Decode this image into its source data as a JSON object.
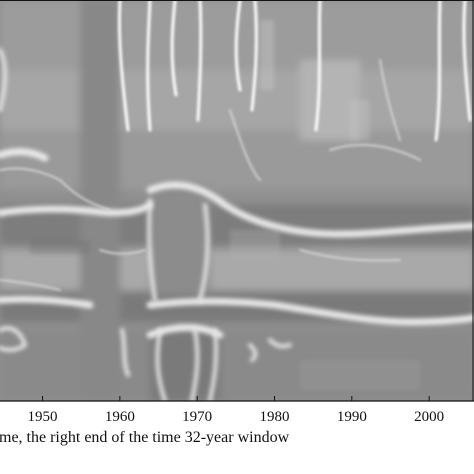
{
  "chart_data": {
    "type": "heatmap",
    "title": "",
    "xlabel": "me, the right end of the time 32-year window",
    "ylabel": "",
    "x_tick_labels": [
      "1950",
      "1960",
      "1970",
      "1980",
      "1990",
      "2000"
    ],
    "x_ticks": [
      1950,
      1960,
      1970,
      1980,
      1990,
      2000
    ],
    "xlim": [
      1944.5,
      2005.8
    ],
    "colormap": "grayscale",
    "grid": false,
    "legend": "none"
  }
}
